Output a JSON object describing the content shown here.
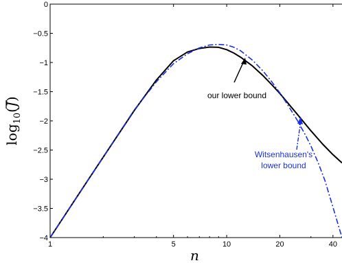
{
  "chart_data": {
    "type": "line",
    "xscale": "log",
    "xlim": [
      1,
      45
    ],
    "ylim": [
      -4,
      0
    ],
    "xticks": [
      1,
      5,
      10,
      20,
      40
    ],
    "xtick_labels": [
      "1",
      "5",
      "10",
      "20",
      "40"
    ],
    "yticks": [
      0,
      -0.5,
      -1,
      -1.5,
      -2,
      -2.5,
      -3,
      -3.5,
      -4
    ],
    "ytick_labels": [
      "0",
      "−0.5",
      "−1",
      "−1.5",
      "−2",
      "−2.5",
      "−3",
      "−3.5",
      "−4"
    ],
    "xlabel": "n",
    "ylabel": "log10(J̄)",
    "ylabel_parts": {
      "base": "log",
      "sub": "10",
      "open": "(",
      "var": "J",
      "close": ")"
    },
    "grid": false,
    "series": [
      {
        "name": "our lower bound",
        "color": "#000000",
        "style": "solid",
        "x": [
          1,
          1.5,
          2,
          3,
          4,
          5,
          6,
          7,
          8,
          9,
          10,
          11,
          12,
          14,
          16,
          18,
          20,
          25,
          30,
          35,
          40,
          45
        ],
        "y": [
          -4.0,
          -3.19,
          -2.62,
          -1.82,
          -1.3,
          -0.97,
          -0.82,
          -0.76,
          -0.735,
          -0.74,
          -0.78,
          -0.84,
          -0.91,
          -1.06,
          -1.22,
          -1.38,
          -1.53,
          -1.88,
          -2.17,
          -2.4,
          -2.58,
          -2.72
        ]
      },
      {
        "name": "Witsenhausen's lower bound",
        "color": "#1a2fe0",
        "style": "dashdot",
        "x": [
          1,
          1.5,
          2,
          3,
          4,
          5,
          6,
          7,
          8,
          9,
          10,
          11,
          12,
          14,
          16,
          18,
          20,
          22,
          25,
          28,
          30,
          33,
          36,
          40,
          45
        ],
        "y": [
          -4.0,
          -3.19,
          -2.62,
          -1.81,
          -1.33,
          -1.02,
          -0.85,
          -0.75,
          -0.7,
          -0.69,
          -0.7,
          -0.74,
          -0.8,
          -0.96,
          -1.14,
          -1.33,
          -1.52,
          -1.71,
          -1.98,
          -2.25,
          -2.43,
          -2.72,
          -3.02,
          -3.48,
          -4.0
        ]
      }
    ],
    "annotations": [
      {
        "id": "our",
        "text": "our lower bound",
        "x": 12.2,
        "y": -0.95,
        "color": "#000000"
      },
      {
        "id": "wit1",
        "text": "Witsenhausen's",
        "x": 25.5,
        "y": -1.9,
        "color": "#1a2fe0"
      },
      {
        "id": "wit2",
        "text": "lower bound",
        "color": "#1a2fe0"
      }
    ]
  }
}
